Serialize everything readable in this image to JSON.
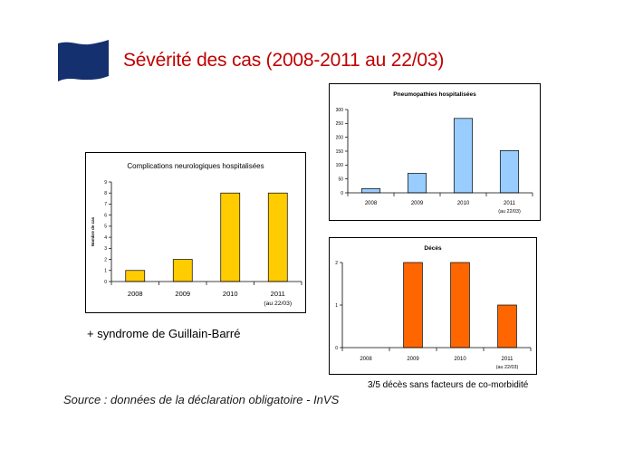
{
  "slide": {
    "title": "Sévérité des cas (2008-2011 au 22/03)",
    "note_gbs": "+ syndrome de Guillain-Barré",
    "source": "Source : données de la déclaration obligatoire - InVS",
    "comorbidity_note": "3/5 décès sans facteurs de co-morbidité"
  },
  "chart_data": [
    {
      "id": "neuro",
      "type": "bar",
      "title": "Complications neurologiques hospitalisées",
      "ylabel": "Nombre de cas",
      "categories": [
        "2008",
        "2009",
        "2010",
        "2011"
      ],
      "category_sublabels": [
        "",
        "",
        "",
        "(au 22/03)"
      ],
      "values": [
        1,
        2,
        8,
        8
      ],
      "ylim": [
        0,
        9
      ],
      "yticks": [
        0,
        1,
        2,
        3,
        4,
        5,
        6,
        7,
        8,
        9
      ],
      "bar_color": "#ffcc00",
      "grid": false
    },
    {
      "id": "pneumo",
      "type": "bar",
      "title": "Pneumopathies hospitalisées",
      "ylabel": "",
      "categories": [
        "2008",
        "2009",
        "2010",
        "2011"
      ],
      "category_sublabels": [
        "",
        "",
        "",
        "(au 22/03)"
      ],
      "values": [
        15,
        70,
        268,
        152
      ],
      "ylim": [
        0,
        300
      ],
      "yticks": [
        0,
        50,
        100,
        150,
        200,
        250,
        300
      ],
      "bar_color": "#99ccff",
      "grid": false
    },
    {
      "id": "deces",
      "type": "bar",
      "title": "Décès",
      "ylabel": "",
      "categories": [
        "2008",
        "2009",
        "2010",
        "2011"
      ],
      "category_sublabels": [
        "",
        "",
        "",
        "(au 22/03)"
      ],
      "values": [
        0,
        2,
        2,
        1
      ],
      "ylim": [
        0,
        2
      ],
      "yticks": [
        0,
        1,
        2
      ],
      "bar_color": "#ff6600",
      "grid": false
    }
  ]
}
